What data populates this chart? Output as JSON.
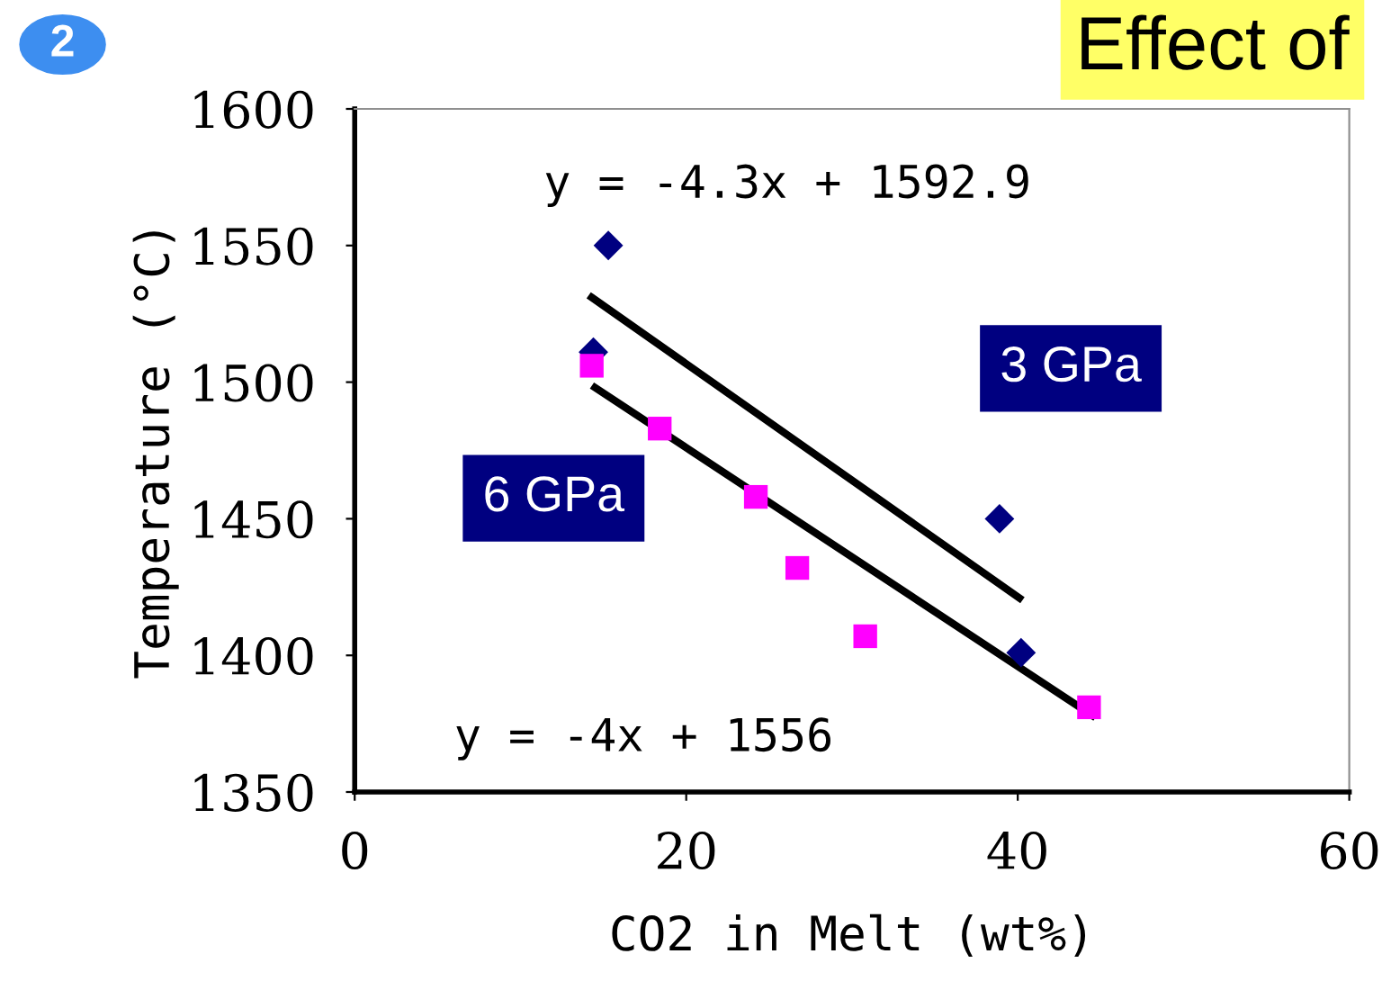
{
  "chart_data": {
    "type": "scatter",
    "title": "Effect of",
    "xlabel": "CO2 in Melt (wt%)",
    "ylabel": "Temperature (°C)",
    "xlim": [
      0,
      60
    ],
    "ylim": [
      1350,
      1600
    ],
    "xticks": [
      0,
      20,
      40,
      60
    ],
    "yticks": [
      1350,
      1400,
      1450,
      1500,
      1550,
      1600
    ],
    "grid": false,
    "legend": false,
    "series": [
      {
        "name": "3 GPa",
        "marker": "diamond",
        "color": "#000080",
        "x": [
          15.3,
          14.4,
          38.9,
          40.2
        ],
        "values": [
          1550,
          1511,
          1450,
          1401
        ]
      },
      {
        "name": "6 GPa",
        "marker": "square",
        "color": "#ff00ff",
        "x": [
          14.3,
          18.4,
          24.2,
          26.7,
          30.8,
          44.3
        ],
        "values": [
          1506,
          1483,
          1458,
          1432,
          1407,
          1381
        ]
      },
      {
        "type": "line",
        "marker": "none",
        "color": "#000000",
        "x": [
          14.3,
          40.1
        ],
        "values": [
          1531,
          1421
        ]
      },
      {
        "type": "line",
        "marker": "none",
        "color": "#000000",
        "x": [
          14.5,
          44.5
        ],
        "values": [
          1498,
          1378
        ]
      }
    ],
    "annotations": [
      "y = -4.3x + 1592.9",
      "y = -4x + 1556",
      "2"
    ]
  }
}
